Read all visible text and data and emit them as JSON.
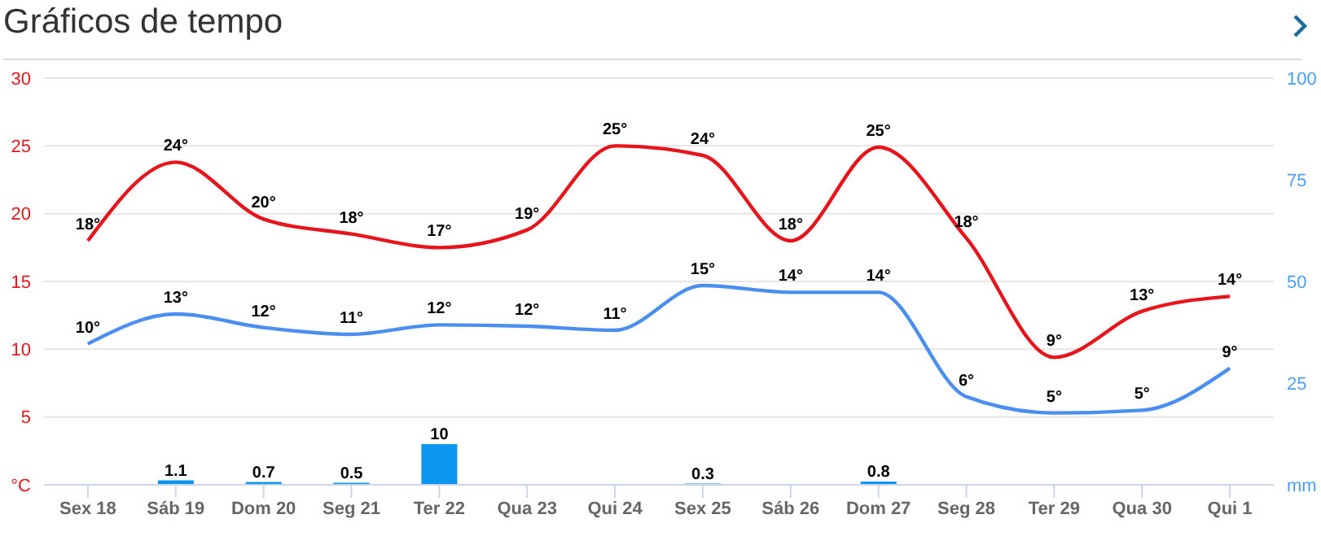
{
  "chart_data": {
    "type": "line",
    "title": "Gráficos de tempo",
    "categories": [
      "Sex 18",
      "Sáb 19",
      "Dom 20",
      "Seg 21",
      "Ter 22",
      "Qua 23",
      "Qui 24",
      "Sex 25",
      "Sáb 26",
      "Dom 27",
      "Seg 28",
      "Ter 29",
      "Qua 30",
      "Qui 1"
    ],
    "series": [
      {
        "color": "#e8141c",
        "values": [
          18,
          23.8,
          19.6,
          18.5,
          17.5,
          18.8,
          25,
          24.3,
          18,
          24.9,
          18.2,
          9.4,
          12.8,
          13.9
        ],
        "value_labels": [
          "18°",
          "24°",
          "20°",
          "18°",
          "17°",
          "19°",
          "25°",
          "24°",
          "18°",
          "25°",
          "18°",
          "9°",
          "13°",
          "14°"
        ]
      },
      {
        "color": "#4a8ff0",
        "values": [
          10.4,
          12.6,
          11.6,
          11.1,
          11.8,
          11.7,
          11.4,
          14.7,
          14.2,
          14.2,
          6.5,
          5.3,
          5.5,
          8.6
        ],
        "value_labels": [
          "10°",
          "13°",
          "12°",
          "11°",
          "12°",
          "12°",
          "11°",
          "15°",
          "14°",
          "14°",
          "6°",
          "5°",
          "5°",
          "9°"
        ]
      },
      {
        "type": "bar",
        "axis": "y2",
        "color": "#0a96f0",
        "values": [
          null,
          1.1,
          0.7,
          0.5,
          10,
          null,
          null,
          0.3,
          null,
          0.8,
          null,
          null,
          null,
          null
        ],
        "value_labels": [
          null,
          "1.1",
          "0.7",
          "0.5",
          "10",
          null,
          null,
          "0.3",
          null,
          "0.8",
          null,
          null,
          null,
          null
        ]
      }
    ],
    "ylim": [
      0,
      30
    ],
    "yticks": [
      {
        "value": 0,
        "label": "°C"
      },
      5,
      10,
      15,
      20,
      25,
      30
    ],
    "y2lim": [
      0,
      100
    ],
    "y2ticks": [
      {
        "value": 0,
        "label": "mm"
      },
      25,
      50,
      75,
      100
    ],
    "grid": "y",
    "marker": "none"
  }
}
